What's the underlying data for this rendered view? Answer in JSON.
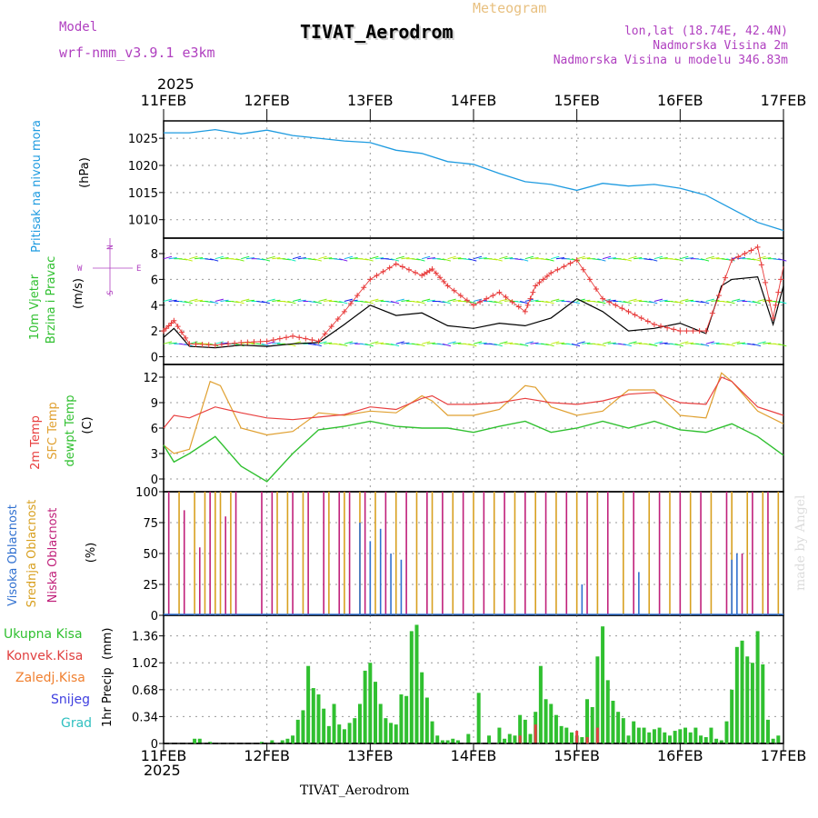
{
  "header": {
    "model_label": "Model",
    "model_name": "wrf-nmm_v3.9.1 e3km",
    "chart_type": "Meteogram",
    "station": "TIVAT_Aerodrom",
    "coords": "lon,lat (18.74E, 42.4N)",
    "elevation": "Nadmorska Visina 2m",
    "model_elevation": "Nadmorska Visina u modelu 346.83m",
    "year_top": "2025",
    "year_bottom": "2025",
    "footer_station": "TIVAT_Aerodrom",
    "credit": "made by Angel"
  },
  "colors": {
    "pressure": "#1e9be0",
    "wind_avg": "#000000",
    "gust": "#e83a3a",
    "temp2m": "#e84040",
    "sfc": "#e0a030",
    "dew": "#30c030",
    "cloud_high": "#3070d0",
    "cloud_mid": "#d8a020",
    "cloud_low": "#c0207a",
    "precip": "#30c030",
    "convective": "#e04040",
    "purple": "#b040c0"
  },
  "time_axis": {
    "start_day": 11,
    "days": 6,
    "ticks": [
      "11FEB",
      "12FEB",
      "13FEB",
      "14FEB",
      "15FEB",
      "16FEB",
      "17FEB"
    ]
  },
  "chart_data": [
    {
      "panel": "pressure",
      "type": "line",
      "ylabel_left": "Pritisak na nivou mora",
      "ylabel_unit": "(hPa)",
      "yticks": [
        "1025",
        "1020",
        "1015",
        "1010"
      ],
      "ylim": [
        1006.6,
        1028.2
      ],
      "x_days": [
        0,
        0.25,
        0.5,
        0.75,
        1.0,
        1.25,
        1.5,
        1.75,
        2.0,
        2.25,
        2.5,
        2.75,
        3.0,
        3.25,
        3.5,
        3.75,
        4.0,
        4.25,
        4.5,
        4.75,
        5.0,
        5.25,
        5.5,
        5.75,
        6.0
      ],
      "values": [
        1026.0,
        1026.0,
        1026.6,
        1025.8,
        1026.5,
        1025.5,
        1025.0,
        1024.5,
        1024.2,
        1022.8,
        1022.2,
        1020.7,
        1020.2,
        1018.5,
        1017.0,
        1016.5,
        1015.4,
        1016.7,
        1016.2,
        1016.5,
        1015.8,
        1014.5,
        1012.0,
        1009.5,
        1008.0
      ]
    },
    {
      "panel": "wind",
      "type": "line",
      "ylabel_left1": "10m Vjetar",
      "ylabel_left2": "Brzina i Pravac",
      "ylabel_unit": "(m/s)",
      "compass_labels": [
        "N",
        "W",
        "E",
        "S"
      ],
      "yticks": [
        "8",
        "6",
        "4",
        "2",
        "0"
      ],
      "ylim": [
        -0.6,
        9.2
      ],
      "arrow_rows": [
        7.6,
        4.3,
        1.0
      ],
      "series": [
        {
          "name": "mean wind",
          "x_days": [
            0,
            0.1,
            0.25,
            0.5,
            0.75,
            1.0,
            1.25,
            1.5,
            1.75,
            2.0,
            2.25,
            2.5,
            2.75,
            3.0,
            3.25,
            3.5,
            3.75,
            4.0,
            4.25,
            4.5,
            4.75,
            5.0,
            5.25,
            5.4,
            5.5,
            5.75,
            5.9,
            6.0
          ],
          "values": [
            1.5,
            2.2,
            0.8,
            0.7,
            0.9,
            0.8,
            1.0,
            1.1,
            2.5,
            4.0,
            3.2,
            3.4,
            2.4,
            2.2,
            2.6,
            2.4,
            3.0,
            4.5,
            3.5,
            2.0,
            2.2,
            2.6,
            1.8,
            5.5,
            6.0,
            6.2,
            2.5,
            5.5
          ]
        },
        {
          "name": "gust",
          "x_days": [
            0,
            0.1,
            0.25,
            0.5,
            0.75,
            1.0,
            1.25,
            1.5,
            1.75,
            2.0,
            2.25,
            2.5,
            2.6,
            2.75,
            3.0,
            3.25,
            3.5,
            3.6,
            3.75,
            4.0,
            4.25,
            4.5,
            4.75,
            5.0,
            5.25,
            5.5,
            5.75,
            5.9,
            6.0
          ],
          "values": [
            2.0,
            2.8,
            1.0,
            0.9,
            1.1,
            1.2,
            1.6,
            1.2,
            3.5,
            6.0,
            7.2,
            6.3,
            6.8,
            5.5,
            4.0,
            5.0,
            3.5,
            5.5,
            6.5,
            7.5,
            4.5,
            3.5,
            2.5,
            2.0,
            2.0,
            7.5,
            8.5,
            3.0,
            7.0
          ]
        }
      ]
    },
    {
      "panel": "temperature",
      "type": "line",
      "ylabel_left1": "2m Temp",
      "ylabel_left2": "SFC Temp",
      "ylabel_left3": "dewpt Temp",
      "ylabel_unit": "(C)",
      "yticks": [
        "12",
        "9",
        "6",
        "3",
        "0"
      ],
      "ylim": [
        -1.5,
        13.5
      ],
      "series": [
        {
          "name": "2m Temp",
          "x_days": [
            0,
            0.1,
            0.25,
            0.5,
            0.75,
            1.0,
            1.25,
            1.5,
            1.75,
            2.0,
            2.25,
            2.5,
            2.6,
            2.75,
            3.0,
            3.25,
            3.5,
            3.75,
            4.0,
            4.25,
            4.5,
            4.75,
            5.0,
            5.25,
            5.4,
            5.5,
            5.75,
            6.0
          ],
          "values": [
            6.0,
            7.5,
            7.2,
            8.5,
            7.8,
            7.2,
            7.0,
            7.3,
            7.6,
            8.5,
            8.2,
            9.5,
            9.8,
            8.8,
            8.8,
            9.0,
            9.5,
            9.0,
            8.8,
            9.2,
            10.0,
            10.2,
            9.0,
            8.8,
            12.0,
            11.5,
            8.5,
            7.5
          ]
        },
        {
          "name": "SFC Temp",
          "x_days": [
            0,
            0.1,
            0.25,
            0.45,
            0.55,
            0.75,
            1.0,
            1.25,
            1.5,
            1.75,
            2.0,
            2.25,
            2.5,
            2.6,
            2.75,
            3.0,
            3.25,
            3.5,
            3.6,
            3.75,
            4.0,
            4.25,
            4.5,
            4.75,
            5.0,
            5.25,
            5.4,
            5.5,
            5.75,
            6.0
          ],
          "values": [
            4.0,
            3.0,
            3.5,
            11.5,
            11.0,
            6.0,
            5.2,
            5.6,
            7.8,
            7.5,
            8.0,
            7.8,
            9.8,
            9.2,
            7.5,
            7.5,
            8.2,
            11.0,
            10.8,
            8.5,
            7.5,
            8.0,
            10.5,
            10.5,
            7.5,
            7.2,
            12.5,
            11.5,
            8.0,
            6.5
          ]
        },
        {
          "name": "dewpt Temp",
          "x_days": [
            0,
            0.1,
            0.25,
            0.5,
            0.75,
            1.0,
            1.25,
            1.5,
            1.75,
            2.0,
            2.25,
            2.5,
            2.75,
            3.0,
            3.25,
            3.5,
            3.75,
            4.0,
            4.25,
            4.5,
            4.75,
            5.0,
            5.25,
            5.5,
            5.75,
            6.0
          ],
          "values": [
            4.0,
            2.0,
            3.0,
            5.0,
            1.5,
            -0.3,
            3.0,
            5.8,
            6.2,
            6.8,
            6.2,
            6.0,
            6.0,
            5.5,
            6.2,
            6.8,
            5.5,
            6.0,
            6.8,
            6.0,
            6.8,
            5.8,
            5.5,
            6.5,
            5.0,
            2.8
          ]
        }
      ]
    },
    {
      "panel": "clouds",
      "type": "bar",
      "ylabel_left1": "Visoka Oblacnost",
      "ylabel_left2": "Srednja Oblacnost",
      "ylabel_left3": "Niska Oblacnost",
      "ylabel_unit": "(%)",
      "yticks": [
        "100",
        "75",
        "50",
        "25",
        "0"
      ],
      "ylim": [
        0,
        100
      ],
      "series": [
        {
          "name": "low",
          "x_days": [
            0.05,
            0.2,
            0.35,
            0.45,
            0.6,
            0.7,
            0.95,
            1.05,
            1.25,
            1.4,
            1.55,
            1.7,
            1.8,
            1.95,
            2.15,
            2.35,
            2.55,
            2.7,
            2.9,
            3.1,
            3.3,
            3.5,
            3.7,
            3.9,
            4.1,
            4.3,
            4.55,
            4.8,
            5.0,
            5.2,
            5.45,
            5.6,
            5.7,
            5.85
          ],
          "values": [
            100,
            85,
            55,
            100,
            80,
            100,
            100,
            100,
            100,
            100,
            100,
            100,
            100,
            100,
            100,
            100,
            100,
            100,
            100,
            100,
            100,
            100,
            100,
            100,
            100,
            100,
            100,
            100,
            100,
            100,
            100,
            50,
            100,
            100
          ]
        },
        {
          "name": "mid",
          "x_days": [
            0.15,
            0.3,
            0.4,
            0.5,
            0.55,
            0.65,
            1.1,
            1.2,
            1.35,
            1.6,
            1.75,
            1.9,
            2.05,
            2.25,
            2.45,
            2.6,
            2.8,
            3.0,
            3.2,
            3.4,
            3.6,
            3.8,
            4.0,
            4.2,
            4.45,
            4.7,
            4.9,
            5.1,
            5.3,
            5.5,
            5.65,
            5.8,
            5.95
          ],
          "values": [
            100,
            100,
            100,
            100,
            100,
            100,
            100,
            100,
            100,
            100,
            100,
            100,
            100,
            100,
            100,
            100,
            100,
            100,
            100,
            100,
            100,
            100,
            100,
            100,
            100,
            100,
            100,
            100,
            100,
            100,
            100,
            100,
            100
          ]
        },
        {
          "name": "high",
          "x_days": [
            1.9,
            2.0,
            2.1,
            2.2,
            2.3,
            4.05,
            4.6,
            5.5,
            5.55
          ],
          "values": [
            75,
            60,
            70,
            50,
            45,
            25,
            35,
            45,
            50
          ]
        }
      ]
    },
    {
      "panel": "precip",
      "type": "bar",
      "ylabel_left": "1hr Precip",
      "ylabel_unit": "(mm)",
      "legend": [
        "Ukupna Kisa",
        "Konvek.Kisa",
        "Zaledj.Kisa",
        "Snijeg",
        "Grad"
      ],
      "yticks": [
        "1.36",
        "1.02",
        "0.68",
        "0.34",
        "0"
      ],
      "ylim": [
        0,
        1.62
      ],
      "x_days": [
        0.3,
        0.35,
        0.45,
        0.95,
        1.05,
        1.15,
        1.2,
        1.25,
        1.3,
        1.35,
        1.4,
        1.45,
        1.5,
        1.55,
        1.6,
        1.65,
        1.7,
        1.75,
        1.8,
        1.85,
        1.9,
        1.95,
        2.0,
        2.05,
        2.1,
        2.15,
        2.2,
        2.25,
        2.3,
        2.35,
        2.4,
        2.45,
        2.5,
        2.55,
        2.6,
        2.65,
        2.7,
        2.75,
        2.8,
        2.85,
        2.95,
        3.05,
        3.15,
        3.25,
        3.3,
        3.35,
        3.4,
        3.45,
        3.5,
        3.55,
        3.6,
        3.65,
        3.7,
        3.75,
        3.8,
        3.85,
        3.9,
        3.95,
        4.0,
        4.05,
        4.1,
        4.15,
        4.2,
        4.25,
        4.3,
        4.35,
        4.4,
        4.45,
        4.5,
        4.55,
        4.6,
        4.65,
        4.7,
        4.75,
        4.8,
        4.85,
        4.9,
        4.95,
        5.0,
        5.05,
        5.1,
        5.15,
        5.2,
        5.25,
        5.3,
        5.35,
        5.4,
        5.45,
        5.5,
        5.55,
        5.6,
        5.65,
        5.7,
        5.75,
        5.8,
        5.85,
        5.9,
        5.95
      ],
      "values": [
        0.06,
        0.06,
        0.02,
        0.02,
        0.04,
        0.04,
        0.06,
        0.1,
        0.3,
        0.42,
        0.98,
        0.7,
        0.62,
        0.44,
        0.22,
        0.5,
        0.24,
        0.18,
        0.26,
        0.32,
        0.5,
        0.92,
        1.02,
        0.78,
        0.5,
        0.32,
        0.26,
        0.24,
        0.62,
        0.6,
        1.42,
        1.5,
        0.9,
        0.58,
        0.28,
        0.1,
        0.04,
        0.04,
        0.06,
        0.04,
        0.12,
        0.64,
        0.1,
        0.2,
        0.06,
        0.12,
        0.1,
        0.36,
        0.3,
        0.12,
        0.4,
        0.98,
        0.56,
        0.5,
        0.36,
        0.22,
        0.2,
        0.14,
        0.1,
        0.08,
        0.56,
        0.46,
        1.1,
        1.48,
        0.8,
        0.54,
        0.4,
        0.32,
        0.1,
        0.28,
        0.2,
        0.2,
        0.14,
        0.18,
        0.2,
        0.14,
        0.1,
        0.16,
        0.18,
        0.2,
        0.14,
        0.2,
        0.1,
        0.08,
        0.2,
        0.06,
        0.04,
        0.28,
        0.68,
        1.22,
        1.3,
        1.1,
        1.02,
        1.42,
        1.0,
        0.3,
        0.06,
        0.1
      ],
      "convective_x_days": [
        3.45,
        3.6,
        4.0,
        4.1,
        4.2
      ],
      "convective_values": [
        0.1,
        0.24,
        0.16,
        0.08,
        0.2
      ]
    }
  ]
}
